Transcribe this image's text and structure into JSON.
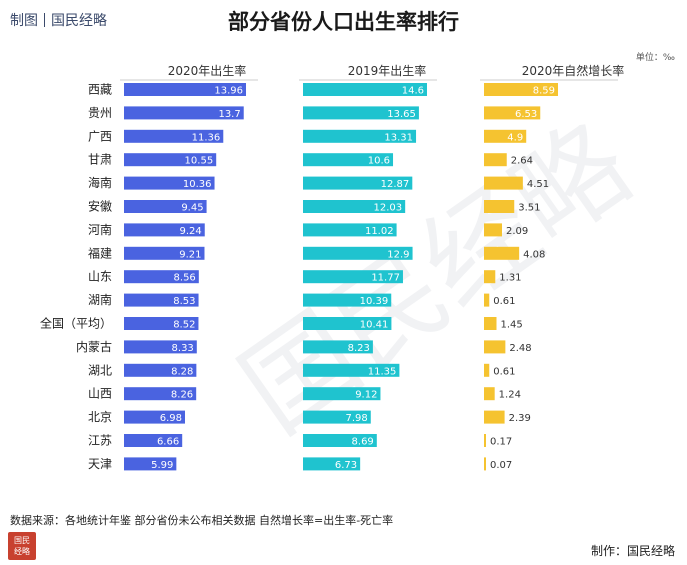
{
  "header": {
    "brand_left": "制图",
    "brand_right": "国民经略",
    "title": "部分省份人口出生率排行",
    "unit": "单位：‰"
  },
  "chart_data": {
    "type": "bar",
    "categories": [
      "西藏",
      "贵州",
      "广西",
      "甘肃",
      "海南",
      "安徽",
      "河南",
      "福建",
      "山东",
      "湖南",
      "全国（平均）",
      "内蒙古",
      "湖北",
      "山西",
      "北京",
      "江苏",
      "天津"
    ],
    "series": [
      {
        "name": "2020年出生率",
        "color": "#4a63e0",
        "values": [
          13.96,
          13.7,
          11.36,
          10.55,
          10.36,
          9.45,
          9.24,
          9.21,
          8.56,
          8.53,
          8.52,
          8.33,
          8.28,
          8.26,
          6.98,
          6.66,
          5.99
        ]
      },
      {
        "name": "2019年出生率",
        "color": "#1fc3cf",
        "values": [
          14.6,
          13.65,
          13.31,
          10.6,
          12.87,
          12.03,
          11.02,
          12.9,
          11.77,
          10.39,
          10.41,
          8.23,
          11.35,
          9.12,
          7.98,
          8.69,
          6.73
        ]
      },
      {
        "name": "2020年自然增长率",
        "color": "#f5c330",
        "values": [
          8.59,
          6.53,
          4.9,
          2.64,
          4.51,
          3.51,
          2.09,
          4.08,
          1.31,
          0.61,
          1.45,
          2.48,
          0.61,
          1.24,
          2.39,
          0.17,
          0.07
        ]
      }
    ]
  },
  "footer": {
    "note": "数据来源：各地统计年鉴  部分省份未公布相关数据  自然增长率=出生率-死亡率",
    "credit": "制作：国民经略",
    "seal_text": "国民经略"
  }
}
